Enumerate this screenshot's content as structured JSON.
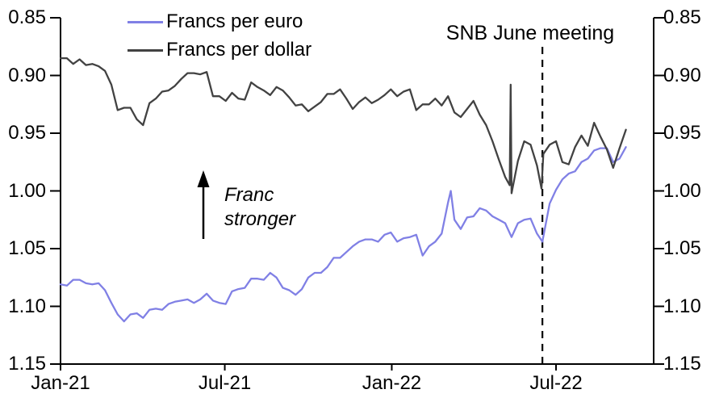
{
  "colors": {
    "background": "#FFFFFF",
    "axis": "#000000",
    "text": "#000000",
    "euro_line": "#8080E5",
    "dollar_line": "#424242",
    "dashed_line": "#000000"
  },
  "legend": {
    "items": [
      {
        "label": "Francs per euro",
        "series": "euro"
      },
      {
        "label": "Francs per dollar",
        "series": "dollar"
      }
    ]
  },
  "annotations": {
    "snb_label": "SNB June meeting",
    "snb_date": "2022-06-16",
    "franc_line1": "Franc",
    "franc_line2": "stronger",
    "arrow": "up-arrow"
  },
  "chart_data": {
    "type": "line",
    "title": "",
    "xlabel": "",
    "ylabel": "",
    "y_axis": {
      "inverted": true,
      "sides": "both",
      "tick_values": [
        0.85,
        0.9,
        0.95,
        1.0,
        1.05,
        1.1,
        1.15
      ],
      "tick_labels": [
        "0.85",
        "0.90",
        "0.95",
        "1.00",
        "1.05",
        "1.10",
        "1.15"
      ],
      "range": [
        0.85,
        1.15
      ]
    },
    "x_axis": {
      "start_date": "2021-01-01",
      "end_date": "2022-09-16",
      "tick_labels": [
        "Jan-21",
        "Jul-21",
        "Jan-22",
        "Jul-22"
      ],
      "tick_dates": [
        "2021-01-01",
        "2021-07-01",
        "2022-01-01",
        "2022-07-01"
      ]
    },
    "grid": false,
    "legend_position": "top-left-inside",
    "series": [
      {
        "name": "Francs per euro",
        "color": "#8080E5",
        "points": [
          [
            "2021-01-01",
            1.081
          ],
          [
            "2021-01-08",
            1.082
          ],
          [
            "2021-01-15",
            1.077
          ],
          [
            "2021-01-22",
            1.077
          ],
          [
            "2021-01-29",
            1.08
          ],
          [
            "2021-02-05",
            1.081
          ],
          [
            "2021-02-12",
            1.08
          ],
          [
            "2021-02-19",
            1.086
          ],
          [
            "2021-02-26",
            1.097
          ],
          [
            "2021-03-05",
            1.107
          ],
          [
            "2021-03-12",
            1.113
          ],
          [
            "2021-03-19",
            1.107
          ],
          [
            "2021-03-26",
            1.106
          ],
          [
            "2021-04-02",
            1.11
          ],
          [
            "2021-04-09",
            1.103
          ],
          [
            "2021-04-16",
            1.102
          ],
          [
            "2021-04-23",
            1.103
          ],
          [
            "2021-04-30",
            1.098
          ],
          [
            "2021-05-07",
            1.096
          ],
          [
            "2021-05-14",
            1.095
          ],
          [
            "2021-05-21",
            1.094
          ],
          [
            "2021-05-28",
            1.097
          ],
          [
            "2021-06-04",
            1.094
          ],
          [
            "2021-06-11",
            1.089
          ],
          [
            "2021-06-18",
            1.095
          ],
          [
            "2021-06-25",
            1.097
          ],
          [
            "2021-07-02",
            1.098
          ],
          [
            "2021-07-09",
            1.087
          ],
          [
            "2021-07-16",
            1.085
          ],
          [
            "2021-07-23",
            1.084
          ],
          [
            "2021-07-30",
            1.076
          ],
          [
            "2021-08-06",
            1.076
          ],
          [
            "2021-08-13",
            1.077
          ],
          [
            "2021-08-20",
            1.071
          ],
          [
            "2021-08-27",
            1.075
          ],
          [
            "2021-09-03",
            1.084
          ],
          [
            "2021-09-10",
            1.086
          ],
          [
            "2021-09-17",
            1.09
          ],
          [
            "2021-09-24",
            1.085
          ],
          [
            "2021-10-01",
            1.075
          ],
          [
            "2021-10-08",
            1.071
          ],
          [
            "2021-10-15",
            1.071
          ],
          [
            "2021-10-22",
            1.066
          ],
          [
            "2021-10-29",
            1.058
          ],
          [
            "2021-11-05",
            1.058
          ],
          [
            "2021-11-12",
            1.053
          ],
          [
            "2021-11-19",
            1.048
          ],
          [
            "2021-11-26",
            1.044
          ],
          [
            "2021-12-03",
            1.042
          ],
          [
            "2021-12-10",
            1.042
          ],
          [
            "2021-12-17",
            1.044
          ],
          [
            "2021-12-24",
            1.038
          ],
          [
            "2021-12-31",
            1.036
          ],
          [
            "2022-01-07",
            1.044
          ],
          [
            "2022-01-14",
            1.041
          ],
          [
            "2022-01-21",
            1.04
          ],
          [
            "2022-01-28",
            1.038
          ],
          [
            "2022-02-04",
            1.056
          ],
          [
            "2022-02-11",
            1.048
          ],
          [
            "2022-02-18",
            1.044
          ],
          [
            "2022-02-25",
            1.037
          ],
          [
            "2022-03-04",
            1.01
          ],
          [
            "2022-03-07",
            1.0
          ],
          [
            "2022-03-11",
            1.025
          ],
          [
            "2022-03-18",
            1.033
          ],
          [
            "2022-03-25",
            1.023
          ],
          [
            "2022-04-01",
            1.022
          ],
          [
            "2022-04-08",
            1.015
          ],
          [
            "2022-04-15",
            1.017
          ],
          [
            "2022-04-22",
            1.022
          ],
          [
            "2022-04-29",
            1.025
          ],
          [
            "2022-05-06",
            1.028
          ],
          [
            "2022-05-13",
            1.04
          ],
          [
            "2022-05-20",
            1.028
          ],
          [
            "2022-05-27",
            1.025
          ],
          [
            "2022-06-03",
            1.024
          ],
          [
            "2022-06-10",
            1.037
          ],
          [
            "2022-06-16",
            1.044
          ],
          [
            "2022-06-24",
            1.011
          ],
          [
            "2022-07-01",
            0.999
          ],
          [
            "2022-07-08",
            0.99
          ],
          [
            "2022-07-15",
            0.985
          ],
          [
            "2022-07-22",
            0.983
          ],
          [
            "2022-07-29",
            0.975
          ],
          [
            "2022-08-05",
            0.972
          ],
          [
            "2022-08-12",
            0.965
          ],
          [
            "2022-08-19",
            0.963
          ],
          [
            "2022-08-26",
            0.963
          ],
          [
            "2022-09-02",
            0.975
          ],
          [
            "2022-09-09",
            0.972
          ],
          [
            "2022-09-16",
            0.962
          ]
        ]
      },
      {
        "name": "Francs per dollar",
        "color": "#424242",
        "points": [
          [
            "2021-01-01",
            0.885
          ],
          [
            "2021-01-08",
            0.885
          ],
          [
            "2021-01-15",
            0.89
          ],
          [
            "2021-01-22",
            0.886
          ],
          [
            "2021-01-29",
            0.891
          ],
          [
            "2021-02-05",
            0.89
          ],
          [
            "2021-02-12",
            0.892
          ],
          [
            "2021-02-19",
            0.896
          ],
          [
            "2021-02-26",
            0.908
          ],
          [
            "2021-03-05",
            0.93
          ],
          [
            "2021-03-12",
            0.928
          ],
          [
            "2021-03-19",
            0.928
          ],
          [
            "2021-03-26",
            0.938
          ],
          [
            "2021-04-02",
            0.943
          ],
          [
            "2021-04-09",
            0.924
          ],
          [
            "2021-04-16",
            0.92
          ],
          [
            "2021-04-23",
            0.914
          ],
          [
            "2021-04-30",
            0.913
          ],
          [
            "2021-05-07",
            0.909
          ],
          [
            "2021-05-14",
            0.903
          ],
          [
            "2021-05-21",
            0.898
          ],
          [
            "2021-05-28",
            0.898
          ],
          [
            "2021-06-04",
            0.899
          ],
          [
            "2021-06-11",
            0.897
          ],
          [
            "2021-06-18",
            0.918
          ],
          [
            "2021-06-25",
            0.918
          ],
          [
            "2021-07-02",
            0.922
          ],
          [
            "2021-07-09",
            0.915
          ],
          [
            "2021-07-16",
            0.92
          ],
          [
            "2021-07-23",
            0.921
          ],
          [
            "2021-07-30",
            0.906
          ],
          [
            "2021-08-06",
            0.91
          ],
          [
            "2021-08-13",
            0.913
          ],
          [
            "2021-08-20",
            0.917
          ],
          [
            "2021-08-27",
            0.91
          ],
          [
            "2021-09-03",
            0.913
          ],
          [
            "2021-09-10",
            0.919
          ],
          [
            "2021-09-17",
            0.926
          ],
          [
            "2021-09-24",
            0.925
          ],
          [
            "2021-10-01",
            0.931
          ],
          [
            "2021-10-08",
            0.927
          ],
          [
            "2021-10-15",
            0.923
          ],
          [
            "2021-10-22",
            0.916
          ],
          [
            "2021-10-29",
            0.916
          ],
          [
            "2021-11-05",
            0.912
          ],
          [
            "2021-11-12",
            0.92
          ],
          [
            "2021-11-19",
            0.929
          ],
          [
            "2021-11-26",
            0.923
          ],
          [
            "2021-12-03",
            0.919
          ],
          [
            "2021-12-10",
            0.924
          ],
          [
            "2021-12-17",
            0.921
          ],
          [
            "2021-12-24",
            0.917
          ],
          [
            "2021-12-31",
            0.912
          ],
          [
            "2022-01-07",
            0.918
          ],
          [
            "2022-01-14",
            0.914
          ],
          [
            "2022-01-21",
            0.912
          ],
          [
            "2022-01-28",
            0.93
          ],
          [
            "2022-02-04",
            0.925
          ],
          [
            "2022-02-11",
            0.925
          ],
          [
            "2022-02-18",
            0.92
          ],
          [
            "2022-02-25",
            0.926
          ],
          [
            "2022-03-04",
            0.918
          ],
          [
            "2022-03-11",
            0.932
          ],
          [
            "2022-03-18",
            0.936
          ],
          [
            "2022-03-25",
            0.929
          ],
          [
            "2022-04-01",
            0.922
          ],
          [
            "2022-04-08",
            0.934
          ],
          [
            "2022-04-15",
            0.943
          ],
          [
            "2022-04-22",
            0.957
          ],
          [
            "2022-04-29",
            0.973
          ],
          [
            "2022-05-06",
            0.988
          ],
          [
            "2022-05-11",
            0.995
          ],
          [
            "2022-05-12",
            0.908
          ],
          [
            "2022-05-13",
            1.002
          ],
          [
            "2022-05-20",
            0.974
          ],
          [
            "2022-05-27",
            0.957
          ],
          [
            "2022-06-03",
            0.96
          ],
          [
            "2022-06-10",
            0.978
          ],
          [
            "2022-06-15",
            0.998
          ],
          [
            "2022-06-17",
            0.968
          ],
          [
            "2022-06-24",
            0.96
          ],
          [
            "2022-07-01",
            0.957
          ],
          [
            "2022-07-08",
            0.975
          ],
          [
            "2022-07-15",
            0.977
          ],
          [
            "2022-07-22",
            0.962
          ],
          [
            "2022-07-29",
            0.952
          ],
          [
            "2022-08-05",
            0.961
          ],
          [
            "2022-08-12",
            0.941
          ],
          [
            "2022-08-19",
            0.953
          ],
          [
            "2022-08-26",
            0.964
          ],
          [
            "2022-09-02",
            0.98
          ],
          [
            "2022-09-09",
            0.963
          ],
          [
            "2022-09-16",
            0.947
          ]
        ]
      }
    ]
  }
}
